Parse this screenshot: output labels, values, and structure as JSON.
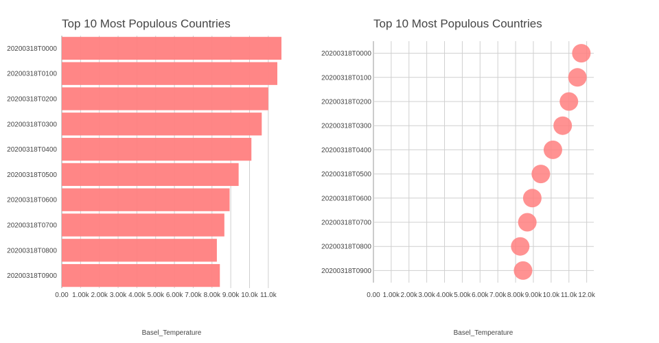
{
  "chart_data": [
    {
      "type": "bar",
      "orientation": "horizontal",
      "title": "Top 10 Most Populous Countries",
      "xlabel": "Basel_Temperature",
      "ylabel": "",
      "categories": [
        "20200318T0000",
        "20200318T0100",
        "20200318T0200",
        "20200318T0300",
        "20200318T0400",
        "20200318T0500",
        "20200318T0600",
        "20200318T0700",
        "20200318T0800",
        "20200318T0900"
      ],
      "values": [
        11700,
        11480,
        11000,
        10650,
        10100,
        9420,
        8940,
        8660,
        8260,
        8420
      ],
      "xlim": [
        0,
        11700
      ],
      "xticks": [
        0,
        1000,
        2000,
        3000,
        4000,
        5000,
        6000,
        7000,
        8000,
        9000,
        10000,
        11000
      ],
      "xtick_labels": [
        "0.00",
        "1.00k",
        "2.00k",
        "3.00k",
        "4.00k",
        "5.00k",
        "6.00k",
        "7.00k",
        "8.00k",
        "9.00k",
        "10.0k",
        "11.0k"
      ],
      "color": "#ff7f7f",
      "grid": true
    },
    {
      "type": "scatter",
      "title": "Top 10 Most Populous Countries",
      "xlabel": "Basel_Temperature",
      "ylabel": "",
      "categories": [
        "20200318T0000",
        "20200318T0100",
        "20200318T0200",
        "20200318T0300",
        "20200318T0400",
        "20200318T0500",
        "20200318T0600",
        "20200318T0700",
        "20200318T0800",
        "20200318T0900"
      ],
      "values": [
        11700,
        11480,
        11000,
        10650,
        10100,
        9420,
        8940,
        8660,
        8260,
        8420
      ],
      "xlim": [
        0,
        12400
      ],
      "xticks": [
        0,
        1000,
        2000,
        3000,
        4000,
        5000,
        6000,
        7000,
        8000,
        9000,
        10000,
        11000,
        12000
      ],
      "xtick_labels": [
        "0.00",
        "1.00k",
        "2.00k",
        "3.00k",
        "4.00k",
        "5.00k",
        "6.00k",
        "7.00k",
        "8.00k",
        "9.00k",
        "10.0k",
        "11.0k",
        "12.0k"
      ],
      "color": "#ff7f7f",
      "grid": true
    }
  ]
}
